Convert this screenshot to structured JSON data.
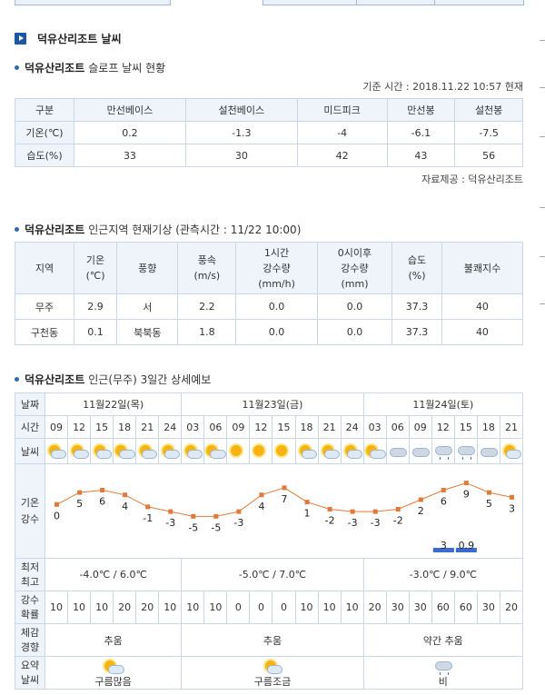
{
  "section_title": "덕유산리조트 날씨",
  "slope": {
    "title_bold": "덕유산리조트",
    "title_rest": "슬로프 날씨 현황",
    "base_time": "기준 시간 : 2018.11.22 10:57 현재",
    "headers": [
      "구분",
      "만선베이스",
      "설천베이스",
      "미드피크",
      "만선봉",
      "설천봉"
    ],
    "rows": [
      [
        "기온(℃)",
        "0.2",
        "-1.3",
        "-4",
        "-6.1",
        "-7.5"
      ],
      [
        "습도(%)",
        "33",
        "30",
        "42",
        "43",
        "56"
      ]
    ],
    "source": "자료제공 : 덕유산리조트"
  },
  "nearby": {
    "title_bold": "덕유산리조트",
    "title_rest": "인근지역 현재기상 (관측시간 : 11/22 10:00)",
    "headers": [
      "지역",
      "기온\n(℃)",
      "풍향",
      "풍속\n(m/s)",
      "1시간\n강수량\n(mm/h)",
      "0시이후\n강수량\n(mm)",
      "습도\n(%)",
      "불쾌지수"
    ],
    "rows": [
      [
        "무주",
        "2.9",
        "서",
        "2.2",
        "0.0",
        "0.0",
        "37.3",
        "40"
      ],
      [
        "구천동",
        "0.1",
        "북북동",
        "1.8",
        "0.0",
        "0.0",
        "37.3",
        "40"
      ]
    ]
  },
  "forecast": {
    "title_bold": "덕유산리조트",
    "title_rest": "인근(무주) 3일간 상세예보",
    "row_labels": {
      "date": "날짜",
      "time": "시간",
      "weather": "날씨",
      "temp": "기온\n강수",
      "minmax": "최저\n최고",
      "prob": "강수\n확률",
      "feel": "체감\n경향",
      "summary": "요약\n날씨"
    },
    "days": [
      {
        "label": "11월22일(목)",
        "span": 6,
        "minmax": "-4.0℃ / 6.0℃",
        "feel": "추움",
        "summary": "구름많음",
        "summary_icon": "cloudy-sun-icon"
      },
      {
        "label": "11월23일(금)",
        "span": 8,
        "minmax": "-5.0℃ / 7.0℃",
        "feel": "추움",
        "summary": "구름조금",
        "summary_icon": "partly-sunny-icon"
      },
      {
        "label": "11월24일(토)",
        "span": 7,
        "minmax": "-3.0℃ / 9.0℃",
        "feel": "약간 추움",
        "summary": "비",
        "summary_icon": "rain-icon"
      }
    ],
    "times": [
      "09",
      "12",
      "15",
      "18",
      "21",
      "24",
      "03",
      "06",
      "09",
      "12",
      "15",
      "18",
      "21",
      "24",
      "03",
      "06",
      "09",
      "12",
      "15",
      "18",
      "21"
    ],
    "weather_icons": [
      "partly-sunny",
      "partly-sunny",
      "partly-sunny",
      "cloudy-sun",
      "partly-sunny",
      "partly-sunny",
      "partly-sunny",
      "cloudy-sun",
      "sun",
      "sun",
      "sun",
      "partly-sunny",
      "partly-sunny",
      "partly-sunny",
      "cloudy-sun",
      "cloudy",
      "cloudy",
      "rain",
      "rain",
      "cloudy",
      "partly-sunny"
    ],
    "probabilities": [
      "10",
      "10",
      "10",
      "20",
      "20",
      "10",
      "10",
      "10",
      "0",
      "0",
      "0",
      "10",
      "10",
      "10",
      "20",
      "30",
      "30",
      "60",
      "60",
      "30",
      "20"
    ],
    "chart_data": {
      "type": "line",
      "x": [
        "09",
        "12",
        "15",
        "18",
        "21",
        "24",
        "03",
        "06",
        "09",
        "12",
        "15",
        "18",
        "21",
        "24",
        "03",
        "06",
        "09",
        "12",
        "15",
        "18",
        "21"
      ],
      "temperatures": [
        0,
        5,
        6,
        4,
        -1,
        -3,
        -5,
        -5,
        -3,
        4,
        7,
        1,
        -2,
        -3,
        -3,
        -2,
        2,
        6,
        9,
        5,
        3
      ],
      "precipitation": [
        {
          "index": 17,
          "label": "3"
        },
        {
          "index": 18,
          "label": "0.9"
        }
      ],
      "line_color": "#e07a3a",
      "bar_color": "#3a6bd0"
    }
  }
}
